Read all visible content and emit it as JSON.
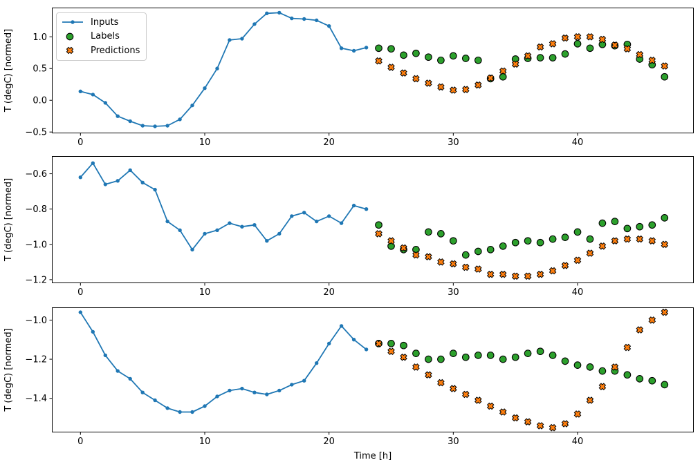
{
  "figure": {
    "background": "#ffffff",
    "text_color": "#000000"
  },
  "legend": {
    "location": "upper left",
    "items": [
      {
        "label": "Inputs",
        "marker": "line-dot",
        "color": "#1f77b4"
      },
      {
        "label": "Labels",
        "marker": "circle",
        "color": "#2ca02c"
      },
      {
        "label": "Predictions",
        "marker": "x",
        "color": "#ff7f0e"
      }
    ]
  },
  "chart_data": [
    {
      "type": "line",
      "title": "",
      "ylabel": "T (degC) [normed]",
      "xlabel": "",
      "xlim": [
        -2.3,
        49.35
      ],
      "ylim": [
        -0.52,
        1.46
      ],
      "xticks": [
        0,
        10,
        20,
        30,
        40
      ],
      "xtick_labels": [
        "0",
        "10",
        "20",
        "30",
        "40"
      ],
      "yticks": [
        1.0,
        0.5,
        0.0,
        -0.5
      ],
      "ytick_labels": [
        "1.0",
        "0.5",
        "0.0",
        "−0.5"
      ],
      "grid": false,
      "series": [
        {
          "name": "Inputs",
          "marker": "line-dot",
          "color": "#1f77b4",
          "x": [
            0,
            1,
            2,
            3,
            4,
            5,
            6,
            7,
            8,
            9,
            10,
            11,
            12,
            13,
            14,
            15,
            16,
            17,
            18,
            19,
            20,
            21,
            22,
            23
          ],
          "y": [
            0.14,
            0.09,
            -0.04,
            -0.25,
            -0.33,
            -0.4,
            -0.41,
            -0.4,
            -0.3,
            -0.08,
            0.19,
            0.5,
            0.95,
            0.97,
            1.2,
            1.37,
            1.38,
            1.29,
            1.28,
            1.26,
            1.17,
            0.82,
            0.78,
            0.83
          ]
        },
        {
          "name": "Labels",
          "marker": "circle",
          "color": "#2ca02c",
          "edge": "#000000",
          "x": [
            24,
            25,
            26,
            27,
            28,
            29,
            30,
            31,
            32,
            33,
            34,
            35,
            36,
            37,
            38,
            39,
            40,
            41,
            42,
            43,
            44,
            45,
            46,
            47
          ],
          "y": [
            0.82,
            0.81,
            0.71,
            0.74,
            0.68,
            0.63,
            0.7,
            0.66,
            0.63,
            0.34,
            0.37,
            0.65,
            0.66,
            0.67,
            0.67,
            0.73,
            0.89,
            0.82,
            0.88,
            0.86,
            0.88,
            0.65,
            0.56,
            0.37
          ]
        },
        {
          "name": "Predictions",
          "marker": "x",
          "color": "#ff7f0e",
          "edge": "#000000",
          "x": [
            24,
            25,
            26,
            27,
            28,
            29,
            30,
            31,
            32,
            33,
            34,
            35,
            36,
            37,
            38,
            39,
            40,
            41,
            42,
            43,
            44,
            45,
            46,
            47
          ],
          "y": [
            0.62,
            0.52,
            0.43,
            0.34,
            0.27,
            0.21,
            0.16,
            0.17,
            0.24,
            0.35,
            0.46,
            0.57,
            0.7,
            0.84,
            0.89,
            0.98,
            1.0,
            1.0,
            0.96,
            0.87,
            0.81,
            0.72,
            0.63,
            0.54
          ]
        }
      ]
    },
    {
      "type": "line",
      "title": "",
      "ylabel": "T (degC) [normed]",
      "xlabel": "",
      "xlim": [
        -2.3,
        49.35
      ],
      "ylim": [
        -1.22,
        -0.5
      ],
      "xticks": [
        0,
        10,
        20,
        30,
        40
      ],
      "xtick_labels": [
        "0",
        "10",
        "20",
        "30",
        "40"
      ],
      "yticks": [
        -0.6,
        -0.8,
        -1.0,
        -1.2
      ],
      "ytick_labels": [
        "−0.6",
        "−0.8",
        "−1.0",
        "−1.2"
      ],
      "grid": false,
      "series": [
        {
          "name": "Inputs",
          "marker": "line-dot",
          "color": "#1f77b4",
          "x": [
            0,
            1,
            2,
            3,
            4,
            5,
            6,
            7,
            8,
            9,
            10,
            11,
            12,
            13,
            14,
            15,
            16,
            17,
            18,
            19,
            20,
            21,
            22,
            23
          ],
          "y": [
            -0.62,
            -0.54,
            -0.66,
            -0.64,
            -0.58,
            -0.65,
            -0.69,
            -0.87,
            -0.92,
            -1.03,
            -0.94,
            -0.92,
            -0.88,
            -0.9,
            -0.89,
            -0.98,
            -0.94,
            -0.84,
            -0.82,
            -0.87,
            -0.84,
            -0.88,
            -0.78,
            -0.8
          ]
        },
        {
          "name": "Labels",
          "marker": "circle",
          "color": "#2ca02c",
          "edge": "#000000",
          "x": [
            24,
            25,
            26,
            27,
            28,
            29,
            30,
            31,
            32,
            33,
            34,
            35,
            36,
            37,
            38,
            39,
            40,
            41,
            42,
            43,
            44,
            45,
            46,
            47
          ],
          "y": [
            -0.89,
            -1.01,
            -1.03,
            -1.03,
            -0.93,
            -0.94,
            -0.98,
            -1.06,
            -1.04,
            -1.03,
            -1.01,
            -0.99,
            -0.98,
            -0.99,
            -0.97,
            -0.96,
            -0.93,
            -0.97,
            -0.88,
            -0.87,
            -0.91,
            -0.9,
            -0.89,
            -0.85
          ]
        },
        {
          "name": "Predictions",
          "marker": "x",
          "color": "#ff7f0e",
          "edge": "#000000",
          "x": [
            24,
            25,
            26,
            27,
            28,
            29,
            30,
            31,
            32,
            33,
            34,
            35,
            36,
            37,
            38,
            39,
            40,
            41,
            42,
            43,
            44,
            45,
            46,
            47
          ],
          "y": [
            -0.94,
            -0.98,
            -1.02,
            -1.06,
            -1.07,
            -1.1,
            -1.11,
            -1.13,
            -1.14,
            -1.17,
            -1.17,
            -1.18,
            -1.18,
            -1.17,
            -1.15,
            -1.12,
            -1.09,
            -1.05,
            -1.01,
            -0.98,
            -0.97,
            -0.97,
            -0.98,
            -1.0
          ]
        }
      ]
    },
    {
      "type": "line",
      "title": "",
      "ylabel": "T (degC) [normed]",
      "xlabel": "Time [h]",
      "xlim": [
        -2.3,
        49.35
      ],
      "ylim": [
        -1.574,
        -0.935
      ],
      "xticks": [
        0,
        10,
        20,
        30,
        40
      ],
      "xtick_labels": [
        "0",
        "10",
        "20",
        "30",
        "40"
      ],
      "yticks": [
        -1.0,
        -1.2,
        -1.4
      ],
      "ytick_labels": [
        "−1.0",
        "−1.2",
        "−1.4"
      ],
      "grid": false,
      "series": [
        {
          "name": "Inputs",
          "marker": "line-dot",
          "color": "#1f77b4",
          "x": [
            0,
            1,
            2,
            3,
            4,
            5,
            6,
            7,
            8,
            9,
            10,
            11,
            12,
            13,
            14,
            15,
            16,
            17,
            18,
            19,
            20,
            21,
            22,
            23
          ],
          "y": [
            -0.96,
            -1.06,
            -1.18,
            -1.26,
            -1.3,
            -1.37,
            -1.41,
            -1.45,
            -1.47,
            -1.47,
            -1.44,
            -1.39,
            -1.36,
            -1.35,
            -1.37,
            -1.38,
            -1.36,
            -1.33,
            -1.31,
            -1.22,
            -1.12,
            -1.03,
            -1.1,
            -1.15
          ]
        },
        {
          "name": "Labels",
          "marker": "circle",
          "color": "#2ca02c",
          "edge": "#000000",
          "x": [
            24,
            25,
            26,
            27,
            28,
            29,
            30,
            31,
            32,
            33,
            34,
            35,
            36,
            37,
            38,
            39,
            40,
            41,
            42,
            43,
            44,
            45,
            46,
            47
          ],
          "y": [
            -1.12,
            -1.12,
            -1.13,
            -1.17,
            -1.2,
            -1.2,
            -1.17,
            -1.19,
            -1.18,
            -1.18,
            -1.2,
            -1.19,
            -1.17,
            -1.16,
            -1.18,
            -1.21,
            -1.23,
            -1.24,
            -1.26,
            -1.26,
            -1.28,
            -1.3,
            -1.31,
            -1.33
          ]
        },
        {
          "name": "Predictions",
          "marker": "x",
          "color": "#ff7f0e",
          "edge": "#000000",
          "x": [
            24,
            25,
            26,
            27,
            28,
            29,
            30,
            31,
            32,
            33,
            34,
            35,
            36,
            37,
            38,
            39,
            40,
            41,
            42,
            43,
            44,
            45,
            46,
            47
          ],
          "y": [
            -1.12,
            -1.16,
            -1.19,
            -1.24,
            -1.28,
            -1.32,
            -1.35,
            -1.38,
            -1.41,
            -1.44,
            -1.47,
            -1.5,
            -1.52,
            -1.54,
            -1.55,
            -1.53,
            -1.48,
            -1.41,
            -1.34,
            -1.24,
            -1.14,
            -1.05,
            -1.0,
            -0.96
          ]
        }
      ]
    }
  ]
}
